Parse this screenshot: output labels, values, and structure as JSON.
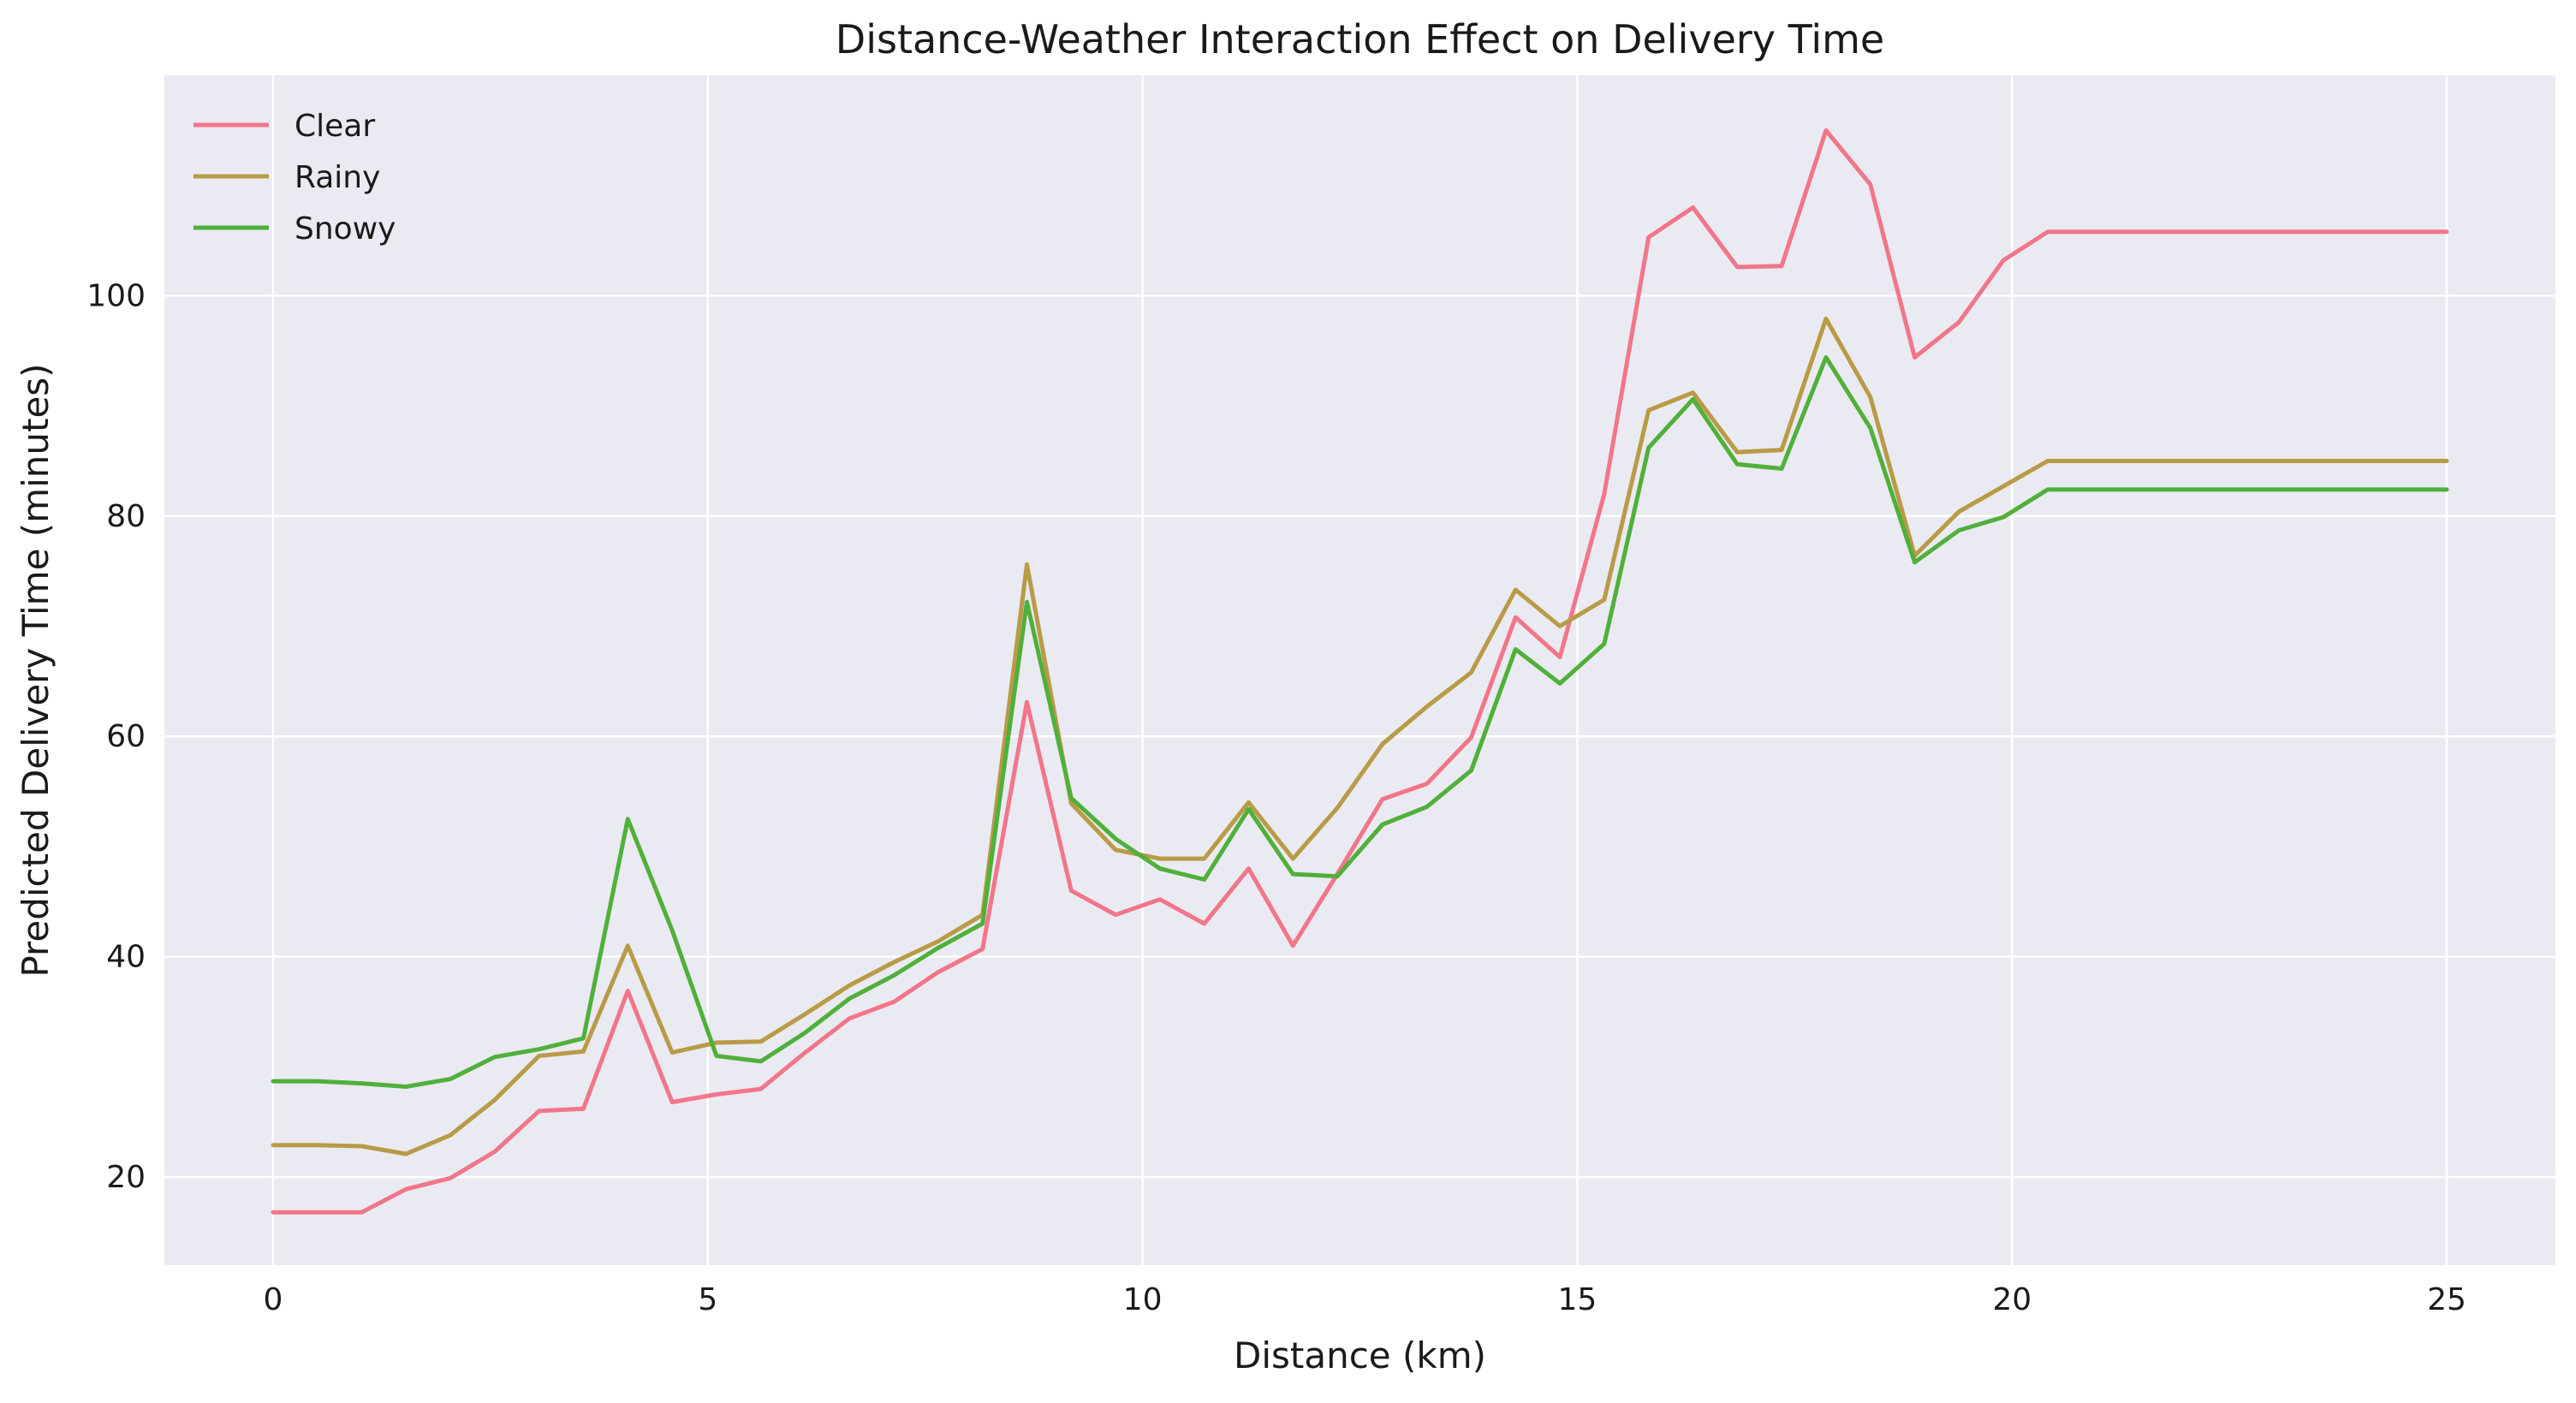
{
  "chart_data": {
    "type": "line",
    "title": "Distance-Weather Interaction Effect on Delivery Time",
    "xlabel": "Distance (km)",
    "ylabel": "Predicted Delivery Time (minutes)",
    "xlim": [
      -1.25,
      26.25
    ],
    "ylim": [
      12,
      120
    ],
    "xticks": [
      0,
      5,
      10,
      15,
      20,
      25
    ],
    "yticks": [
      20,
      40,
      60,
      80,
      100
    ],
    "grid": true,
    "legend_position": "top-left",
    "background": "#eaeaf2",
    "x": [
      0,
      0.51,
      1.02,
      1.53,
      2.04,
      2.55,
      3.06,
      3.57,
      4.08,
      4.59,
      5.1,
      5.61,
      6.12,
      6.63,
      7.14,
      7.65,
      8.16,
      8.67,
      9.18,
      9.69,
      10.2,
      10.71,
      11.22,
      11.73,
      12.24,
      12.76,
      13.27,
      13.78,
      14.29,
      14.8,
      15.31,
      15.82,
      16.33,
      16.84,
      17.35,
      17.86,
      18.37,
      18.88,
      19.39,
      19.9,
      20.41,
      20.92,
      21.43,
      21.94,
      22.45,
      22.96,
      23.47,
      23.98,
      24.49,
      25
    ],
    "series": [
      {
        "name": "Clear",
        "color": "#f2758a",
        "values": [
          16.8,
          16.8,
          16.8,
          18.9,
          19.9,
          22.3,
          26.0,
          26.2,
          36.9,
          26.8,
          27.5,
          28.0,
          31.3,
          34.4,
          35.9,
          38.6,
          40.7,
          63.1,
          46.0,
          43.8,
          45.2,
          43.0,
          48.0,
          41.0,
          47.5,
          54.3,
          55.7,
          59.9,
          70.8,
          67.2,
          82.0,
          105.3,
          108.0,
          102.6,
          102.7,
          115.0,
          110.1,
          94.4,
          97.6,
          103.2,
          105.8,
          105.8,
          105.8,
          105.8,
          105.8,
          105.8,
          105.8,
          105.8,
          105.8,
          105.8
        ]
      },
      {
        "name": "Rainy",
        "color": "#b99a46",
        "values": [
          22.9,
          22.9,
          22.8,
          22.1,
          23.8,
          27.0,
          31.0,
          31.4,
          41.0,
          31.3,
          32.2,
          32.3,
          34.8,
          37.4,
          39.5,
          41.4,
          43.8,
          75.6,
          53.9,
          49.7,
          48.9,
          48.9,
          54.0,
          48.9,
          53.5,
          59.3,
          62.7,
          65.8,
          73.3,
          70.0,
          72.4,
          89.6,
          91.2,
          85.8,
          86.0,
          97.9,
          90.8,
          76.4,
          80.4,
          82.7,
          85.0,
          85.0,
          85.0,
          85.0,
          85.0,
          85.0,
          85.0,
          85.0,
          85.0,
          85.0
        ]
      },
      {
        "name": "Snowy",
        "color": "#4fb03a",
        "values": [
          28.7,
          28.7,
          28.5,
          28.2,
          28.9,
          30.9,
          31.6,
          32.6,
          52.5,
          42.4,
          31.0,
          30.5,
          33.1,
          36.2,
          38.3,
          40.8,
          43.0,
          72.2,
          54.4,
          50.7,
          48.0,
          47.0,
          53.4,
          47.5,
          47.3,
          52.0,
          53.6,
          56.9,
          67.9,
          64.8,
          68.4,
          86.2,
          90.6,
          84.7,
          84.3,
          94.4,
          88.0,
          75.8,
          78.7,
          79.9,
          82.4,
          82.4,
          82.4,
          82.4,
          82.4,
          82.4,
          82.4,
          82.4,
          82.4,
          82.4
        ]
      }
    ]
  }
}
